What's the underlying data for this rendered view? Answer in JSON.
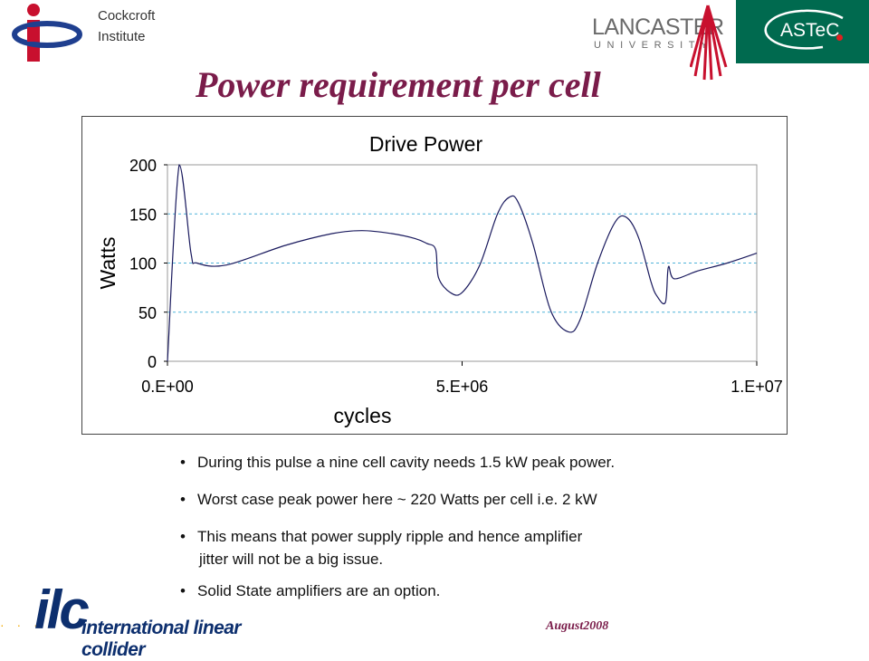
{
  "header": {
    "institute_name_line1": "Cockcroft",
    "institute_name_line2": "Institute",
    "university_name": "LANCASTER",
    "university_sub": "UNIVERSITY",
    "astec_label": "ASTeC"
  },
  "title": "Power requirement per cell",
  "chart_data": {
    "type": "line",
    "title": "Drive Power",
    "xlabel": "cycles",
    "ylabel": "Watts",
    "xlim": [
      0,
      10000000
    ],
    "ylim": [
      0,
      200
    ],
    "grid": "horizontal dashed",
    "x_ticks": [
      "0.E+00",
      "5.E+06",
      "1.E+07"
    ],
    "y_ticks": [
      "0",
      "50",
      "100",
      "150",
      "200"
    ],
    "colors": {
      "line": "#1a1a5e",
      "grid": "#4fb3d9"
    },
    "series": [
      {
        "x": [
          0,
          200000,
          400000,
          500000,
          1000000,
          2000000,
          2800000,
          3300000,
          3800000,
          4200000,
          4400000,
          4550000,
          4600000,
          4800000,
          5000000,
          5300000,
          5600000,
          5800000,
          5950000,
          6200000,
          6500000,
          6800000,
          7000000,
          7300000,
          7600000,
          7800000,
          8000000,
          8200000,
          8300000,
          8450000,
          8500000,
          8600000,
          9000000,
          9500000,
          10000000
        ],
        "y": [
          0,
          200,
          110,
          100,
          98,
          118,
          130,
          133,
          130,
          125,
          120,
          114,
          85,
          70,
          70,
          98,
          150,
          167,
          162,
          120,
          52,
          30,
          42,
          100,
          142,
          146,
          125,
          82,
          67,
          60,
          96,
          84,
          92,
          100,
          110
        ]
      }
    ]
  },
  "bullets": [
    {
      "text": "During this pulse a nine cell cavity needs 1.5 kW peak power."
    },
    {
      "text": "Worst case peak power here ~ 220 Watts per cell i.e. 2 kW"
    },
    {
      "text": "This means that power supply ripple and hence amplifier",
      "text2": "jitter will not be a big issue."
    },
    {
      "text": "Solid State amplifiers are an option."
    }
  ],
  "footer": {
    "ilc_mark": "ilc",
    "ilc_tagline": "international linear collider",
    "date": "August2008"
  }
}
